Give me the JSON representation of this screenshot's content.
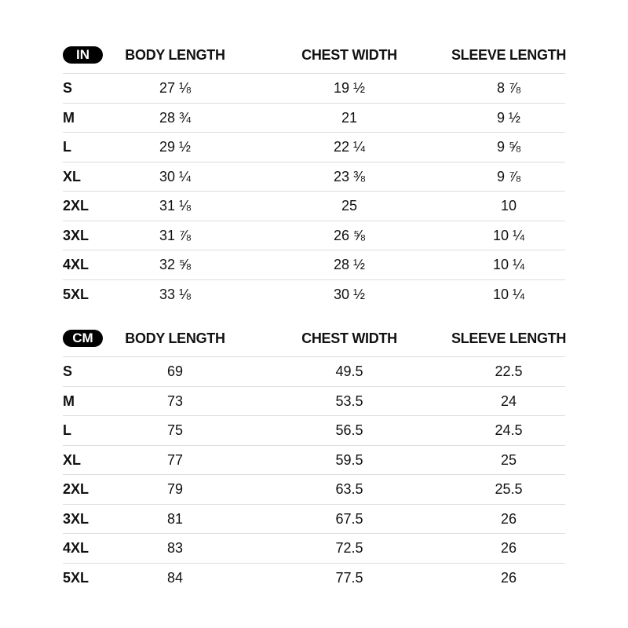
{
  "columns": [
    "BODY LENGTH",
    "CHEST WIDTH",
    "SLEEVE LENGTH"
  ],
  "tables": [
    {
      "unit": "IN",
      "rows": [
        {
          "size": "S",
          "body": "27 ⅛",
          "chest": "19 ½",
          "sleeve": "8 ⅞"
        },
        {
          "size": "M",
          "body": "28 ¾",
          "chest": "21",
          "sleeve": "9 ½"
        },
        {
          "size": "L",
          "body": "29 ½",
          "chest": "22 ¼",
          "sleeve": "9 ⅝"
        },
        {
          "size": "XL",
          "body": "30 ¼",
          "chest": "23 ⅜",
          "sleeve": "9 ⅞"
        },
        {
          "size": "2XL",
          "body": "31 ⅛",
          "chest": "25",
          "sleeve": "10"
        },
        {
          "size": "3XL",
          "body": "31 ⅞",
          "chest": "26 ⅝",
          "sleeve": "10 ¼"
        },
        {
          "size": "4XL",
          "body": "32 ⅝",
          "chest": "28 ½",
          "sleeve": "10 ¼"
        },
        {
          "size": "5XL",
          "body": "33 ⅛",
          "chest": "30 ½",
          "sleeve": "10 ¼"
        }
      ]
    },
    {
      "unit": "CM",
      "rows": [
        {
          "size": "S",
          "body": "69",
          "chest": "49.5",
          "sleeve": "22.5"
        },
        {
          "size": "M",
          "body": "73",
          "chest": "53.5",
          "sleeve": "24"
        },
        {
          "size": "L",
          "body": "75",
          "chest": "56.5",
          "sleeve": "24.5"
        },
        {
          "size": "XL",
          "body": "77",
          "chest": "59.5",
          "sleeve": "25"
        },
        {
          "size": "2XL",
          "body": "79",
          "chest": "63.5",
          "sleeve": "25.5"
        },
        {
          "size": "3XL",
          "body": "81",
          "chest": "67.5",
          "sleeve": "26"
        },
        {
          "size": "4XL",
          "body": "83",
          "chest": "72.5",
          "sleeve": "26"
        },
        {
          "size": "5XL",
          "body": "84",
          "chest": "77.5",
          "sleeve": "26"
        }
      ]
    }
  ]
}
